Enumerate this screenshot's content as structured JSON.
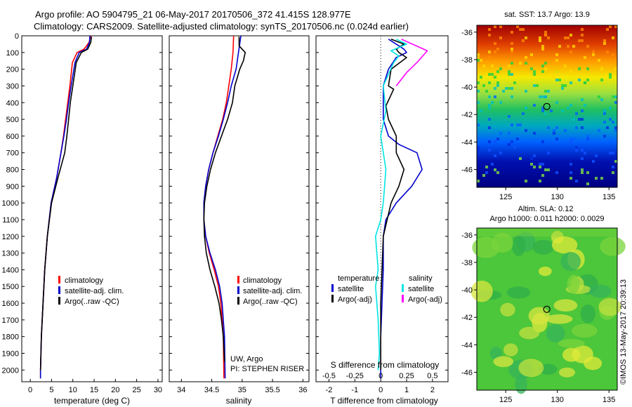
{
  "header": {
    "line1": "Argo profile: AO 5904795_21 06-May-2017 20170506_372 41.415S 128.977E",
    "line2": "Climatology: CARS2009. Satellite-adjusted climatology: synTS_20170506.nc (0.024d earlier)"
  },
  "credit": "©IMOS 13-May-2017 20:39:13",
  "colors": {
    "climatology": "#ff0000",
    "satellite": "#0000cc",
    "argo": "#000000",
    "salinity_sat": "#00e5e5",
    "salinity_argo": "#ff00ff"
  },
  "chart_data": [
    {
      "type": "line",
      "name": "temperature-panel",
      "xlabel": "temperature (deg C)",
      "ylabel": "",
      "xlim": [
        -2,
        31
      ],
      "ylim": [
        2070,
        0
      ],
      "xticks": [
        0,
        5,
        10,
        15,
        20,
        25,
        30
      ],
      "yticks": [
        0,
        100,
        200,
        300,
        400,
        500,
        600,
        700,
        800,
        900,
        1000,
        1100,
        1200,
        1300,
        1400,
        1500,
        1600,
        1700,
        1800,
        1900,
        2000
      ],
      "legend": {
        "placement": "bottom-right",
        "entries": [
          "climatology",
          "satellite-adj. clim.",
          "Argo(..raw -QC)"
        ]
      },
      "series": [
        {
          "name": "climatology",
          "color": "#ff0000",
          "x": [
            14.2,
            13.8,
            12.6,
            11.0,
            9.9,
            9.3,
            8.8,
            8.3,
            7.8,
            7.2,
            6.2,
            4.9,
            4.0,
            3.4,
            3.0,
            2.8,
            2.6,
            2.5,
            2.4,
            2.4
          ],
          "y": [
            0,
            40,
            80,
            100,
            160,
            300,
            400,
            500,
            600,
            700,
            850,
            1000,
            1200,
            1400,
            1600,
            1700,
            1800,
            1900,
            2000,
            2050
          ]
        },
        {
          "name": "satellite-adj. clim.",
          "color": "#0000cc",
          "x": [
            14.0,
            13.9,
            13.2,
            11.5,
            10.5,
            9.6,
            9.0,
            8.5,
            7.9,
            7.2,
            6.2,
            4.9,
            4.0,
            3.4,
            3.0,
            2.8,
            2.6,
            2.5,
            2.4,
            2.4
          ],
          "y": [
            0,
            40,
            80,
            100,
            160,
            300,
            400,
            500,
            600,
            700,
            850,
            1000,
            1200,
            1400,
            1600,
            1700,
            1800,
            1900,
            2000,
            2050
          ]
        },
        {
          "name": "Argo(..raw -QC)",
          "color": "#000000",
          "x": [
            14.4,
            14.2,
            13.5,
            12.0,
            10.8,
            10.0,
            9.4,
            9.0,
            8.6,
            8.1,
            6.5,
            5.0,
            4.0,
            3.4,
            3.0,
            2.8,
            2.6,
            2.5,
            2.4
          ],
          "y": [
            5,
            40,
            80,
            100,
            160,
            300,
            400,
            500,
            600,
            700,
            850,
            1000,
            1200,
            1400,
            1600,
            1700,
            1800,
            1900,
            2000
          ]
        }
      ]
    },
    {
      "type": "line",
      "name": "salinity-panel",
      "xlabel": "salinity",
      "ylabel": "",
      "xlim": [
        33.8,
        36.1
      ],
      "ylim": [
        2070,
        0
      ],
      "xticks": [
        34,
        34.5,
        35,
        35.5,
        36
      ],
      "legend": {
        "placement": "bottom-right",
        "entries": [
          "climatology",
          "satellite-adj. clim.",
          "Argo(..raw -QC)"
        ]
      },
      "annotation": [
        "UW, Argo",
        "PI: STEPHEN RISER"
      ],
      "series": [
        {
          "name": "climatology",
          "color": "#ff0000",
          "x": [
            34.86,
            34.85,
            34.82,
            34.78,
            34.74,
            34.68,
            34.6,
            34.52,
            34.45,
            34.4,
            34.37,
            34.37,
            34.4,
            34.46,
            34.54,
            34.61,
            34.65,
            34.67,
            34.69,
            34.7
          ],
          "y": [
            0,
            100,
            200,
            300,
            400,
            500,
            600,
            700,
            800,
            900,
            1000,
            1100,
            1200,
            1300,
            1400,
            1500,
            1600,
            1700,
            1800,
            2050
          ]
        },
        {
          "name": "satellite-adj. clim.",
          "color": "#0000cc",
          "x": [
            34.98,
            34.94,
            34.9,
            34.82,
            34.76,
            34.69,
            34.61,
            34.52,
            34.45,
            34.4,
            34.37,
            34.37,
            34.4,
            34.47,
            34.56,
            34.63,
            34.67,
            34.69,
            34.71,
            34.72
          ],
          "y": [
            0,
            100,
            200,
            300,
            400,
            500,
            600,
            700,
            800,
            900,
            1000,
            1100,
            1200,
            1300,
            1400,
            1500,
            1600,
            1700,
            1800,
            2050
          ]
        },
        {
          "name": "Argo(..raw -QC)",
          "color": "#000000",
          "x": [
            34.95,
            34.95,
            35.05,
            35.02,
            34.96,
            34.92,
            34.88,
            34.84,
            34.76,
            34.66,
            34.56,
            34.48,
            34.42,
            34.38,
            34.37,
            34.38,
            34.41,
            34.47,
            34.55,
            34.62,
            34.66,
            34.69,
            34.71
          ],
          "y": [
            5,
            60,
            100,
            150,
            200,
            250,
            300,
            400,
            500,
            600,
            700,
            800,
            900,
            1000,
            1100,
            1200,
            1300,
            1400,
            1500,
            1600,
            1700,
            1800,
            1950
          ]
        }
      ]
    },
    {
      "type": "line",
      "name": "difference-panel",
      "xlabel": "T difference from climatology",
      "xlabel_top": "S difference from climatology",
      "ylabel": "",
      "xlim": [
        -2.5,
        2.6
      ],
      "ylim": [
        2070,
        0
      ],
      "xticks": [
        -2,
        -1,
        0,
        1,
        2
      ],
      "sticks": [
        "-0.5",
        "-0.25",
        "0",
        "0.25",
        "0.5"
      ],
      "legend": {
        "placement": "bottom",
        "groups": [
          {
            "title": "temperature",
            "entries": [
              "satellite",
              "Argo(-adj)"
            ]
          },
          {
            "title": "salinity",
            "entries": [
              "satellite",
              "Argo(-adj)"
            ]
          }
        ]
      },
      "series": [
        {
          "name": "T satellite",
          "color": "#0000cc",
          "x": [
            0.3,
            0.6,
            0.9,
            1.0,
            0.6,
            0.3,
            0.1,
            0.1,
            0.1,
            0.3,
            0.7,
            1.4,
            1.6,
            1.2,
            0.6,
            0.2,
            0.1,
            0.1,
            0.05,
            0.0,
            0.0
          ],
          "y": [
            20,
            50,
            80,
            100,
            130,
            200,
            300,
            400,
            500,
            600,
            650,
            700,
            800,
            900,
            1000,
            1100,
            1200,
            1400,
            1600,
            1800,
            2050
          ]
        },
        {
          "name": "T Argo(-adj)",
          "color": "#000000",
          "x": [
            0.4,
            0.9,
            0.6,
            0.7,
            1.0,
            0.4,
            0.3,
            0.5,
            0.2,
            0.3,
            0.6,
            0.6,
            0.9,
            0.7,
            0.4,
            0.1,
            0.0,
            0.0
          ],
          "y": [
            20,
            50,
            80,
            100,
            130,
            200,
            300,
            320,
            420,
            500,
            600,
            700,
            800,
            900,
            1000,
            1200,
            1600,
            2000
          ]
        },
        {
          "name": "S satellite",
          "color": "#00e5e5",
          "x": [
            0.6,
            1.0,
            0.4,
            0.7,
            0.5,
            0.1,
            0.2,
            0.0,
            0.2,
            0.1,
            0.0,
            -0.2,
            -0.1,
            -0.2,
            -0.1,
            -0.05,
            -0.1
          ],
          "y": [
            20,
            50,
            90,
            120,
            160,
            300,
            450,
            600,
            800,
            1000,
            1100,
            1200,
            1400,
            1500,
            1700,
            1900,
            2000
          ]
        },
        {
          "name": "S Argo(-adj)",
          "color": "#ff00ff",
          "x": [
            0.8,
            1.8,
            1.4,
            1.0,
            0.6
          ],
          "y": [
            20,
            90,
            160,
            220,
            300
          ]
        }
      ]
    },
    {
      "type": "heatmap",
      "name": "sst-map",
      "title": "sat. SST: 13.7 Argo: 13.9",
      "xticks": [
        125,
        130,
        135
      ],
      "yticks": [
        -36,
        -38,
        -40,
        -42,
        -44,
        -46
      ],
      "xlim": [
        122.2,
        135.8
      ],
      "ylim": [
        -47.3,
        -35.5
      ],
      "marker": {
        "lon": 128.977,
        "lat": -41.415
      }
    },
    {
      "type": "heatmap",
      "name": "sla-map",
      "title": "Altim. SLA: 0.12",
      "subtitle": "Argo h1000: 0.011 h2000: 0.0029",
      "xticks": [
        125,
        130,
        135
      ],
      "yticks": [
        -36,
        -38,
        -40,
        -42,
        -44,
        -46
      ],
      "xlim": [
        122.2,
        135.8
      ],
      "ylim": [
        -47.3,
        -35.5
      ],
      "marker": {
        "lon": 128.977,
        "lat": -41.415
      }
    }
  ]
}
